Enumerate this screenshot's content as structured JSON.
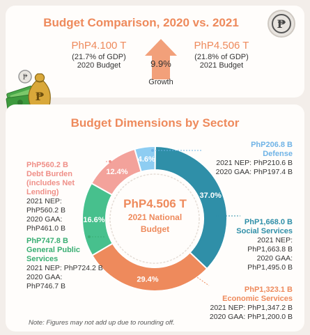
{
  "header": {
    "title": "Budget Comparison, 2020 vs. 2021",
    "budget_2020": {
      "amount": "PhP4.100 T",
      "gdp": "(21.7% of GDP)",
      "label": "2020 Budget"
    },
    "budget_2021": {
      "amount": "PhP4.506 T",
      "gdp": "(21.8% of GDP)",
      "label": "2021 Budget"
    },
    "growth": {
      "value": "9.9%",
      "label": "Growth"
    },
    "peso_symbol": "₱"
  },
  "section_title": "Budget Dimensions by Sector",
  "center": {
    "amount": "PhP4.506 T",
    "line1": "2021 National",
    "line2": "Budget"
  },
  "note": "Note: Figures may not add up due to rounding off.",
  "chart_data": {
    "type": "pie",
    "title": "Budget Dimensions by Sector",
    "series": [
      {
        "name": "Defense",
        "pct": 4.6,
        "pct_label": "4.6%",
        "value": 206.8,
        "color": "#8ecdf2",
        "amount": "PhP206.8 B",
        "name_lines": [
          "Defense"
        ],
        "details": [
          "2021 NEP: PhP210.6 B",
          "2020 GAA: PhP197.4 B"
        ]
      },
      {
        "name": "Social Services",
        "pct": 37.0,
        "pct_label": "37.0%",
        "value": 1668.0,
        "color": "#2f8fa8",
        "amount": "PhP1,668.0 B",
        "name_lines": [
          "Social Services"
        ],
        "details": [
          "2021 NEP:",
          "PhP1,663.8 B",
          "2020 GAA:",
          "PhP1,495.0 B"
        ]
      },
      {
        "name": "Economic Services",
        "pct": 29.4,
        "pct_label": "29.4%",
        "value": 1323.1,
        "color": "#ee8a5c",
        "amount": "PhP1,323.1 B",
        "name_lines": [
          "Economic Services"
        ],
        "details": [
          "2021 NEP: PhP1,347.2 B",
          "2020 GAA: PhP1,200.0 B"
        ]
      },
      {
        "name": "General Public Services",
        "pct": 16.6,
        "pct_label": "16.6%",
        "value": 747.8,
        "color": "#47c08d",
        "amount": "PhP747.8 B",
        "name_lines": [
          "General Public",
          "Services"
        ],
        "details": [
          "2021 NEP: PhP724.2 B",
          "2020 GAA:",
          "PhP746.7 B"
        ]
      },
      {
        "name": "Debt Burden (includes Net Lending)",
        "pct": 12.4,
        "pct_label": "12.4%",
        "value": 560.2,
        "color": "#f3a29b",
        "amount": "PhP560.2 B",
        "name_lines": [
          "Debt Burden",
          "(includes Net",
          "Lending)"
        ],
        "details": [
          "2021 NEP:",
          "PhP560.2 B",
          "2020 GAA:",
          "PhP461.0 B"
        ]
      }
    ]
  }
}
